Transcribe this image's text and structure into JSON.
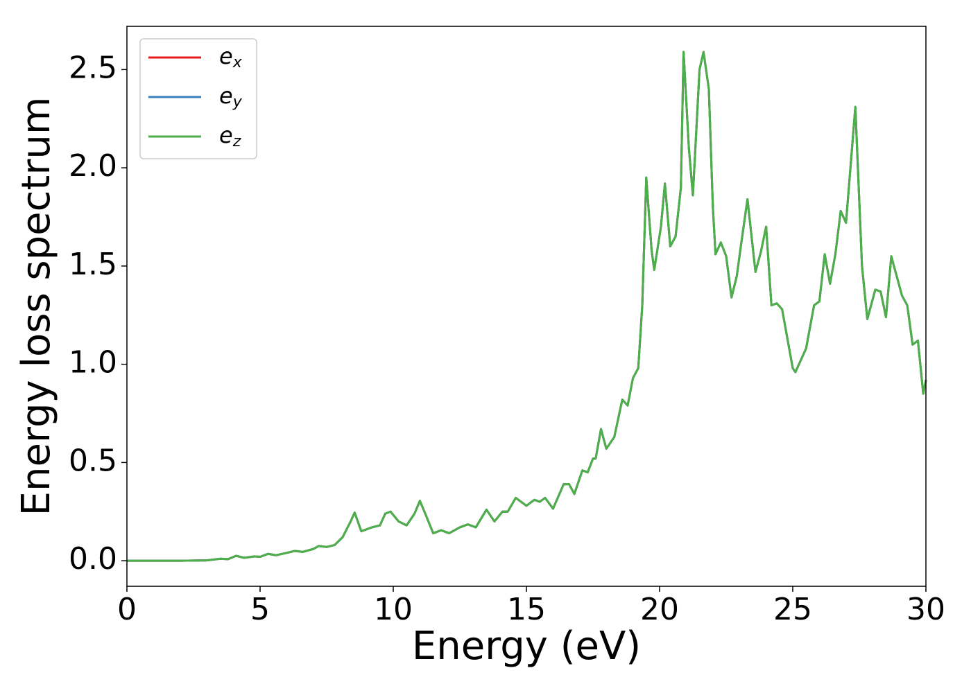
{
  "chart_data": {
    "type": "line",
    "xlabel": "Energy (eV)",
    "ylabel": "Energy loss spectrum",
    "x": [
      0,
      1,
      2,
      3,
      3.5,
      3.8,
      4.1,
      4.4,
      4.8,
      5,
      5.3,
      5.6,
      6,
      6.3,
      6.6,
      7,
      7.2,
      7.5,
      7.8,
      8.1,
      8.4,
      8.55,
      8.8,
      9.2,
      9.5,
      9.7,
      9.9,
      10.2,
      10.5,
      10.8,
      11.0,
      11.2,
      11.5,
      11.8,
      12.1,
      12.5,
      12.8,
      13.1,
      13.5,
      13.8,
      14.1,
      14.3,
      14.6,
      15,
      15.3,
      15.5,
      15.7,
      16,
      16.4,
      16.6,
      16.8,
      17.1,
      17.3,
      17.5,
      17.6,
      17.8,
      18,
      18.3,
      18.6,
      18.8,
      19,
      19.2,
      19.35,
      19.5,
      19.7,
      19.8,
      20.05,
      20.2,
      20.4,
      20.6,
      20.8,
      20.9,
      21.1,
      21.25,
      21.5,
      21.65,
      21.85,
      22.0,
      22.1,
      22.3,
      22.5,
      22.7,
      22.9,
      23.05,
      23.3,
      23.6,
      23.8,
      24.0,
      24.2,
      24.4,
      24.6,
      25.0,
      25.1,
      25.5,
      25.8,
      26.0,
      26.2,
      26.4,
      26.6,
      26.8,
      27.0,
      27.35,
      27.6,
      27.8,
      28.1,
      28.3,
      28.5,
      28.7,
      28.9,
      29.1,
      29.3,
      29.5,
      29.7,
      29.9,
      30
    ],
    "series": [
      {
        "name": "ex",
        "color": "#e41a1c",
        "values": [
          0,
          0,
          0,
          0.002,
          0.01,
          0.008,
          0.025,
          0.015,
          0.022,
          0.02,
          0.035,
          0.028,
          0.04,
          0.05,
          0.045,
          0.06,
          0.075,
          0.07,
          0.08,
          0.12,
          0.2,
          0.245,
          0.15,
          0.17,
          0.18,
          0.24,
          0.25,
          0.2,
          0.18,
          0.24,
          0.305,
          0.24,
          0.14,
          0.155,
          0.14,
          0.17,
          0.185,
          0.17,
          0.26,
          0.2,
          0.25,
          0.25,
          0.32,
          0.28,
          0.31,
          0.3,
          0.32,
          0.265,
          0.39,
          0.39,
          0.34,
          0.46,
          0.45,
          0.52,
          0.52,
          0.67,
          0.57,
          0.63,
          0.82,
          0.79,
          0.93,
          0.98,
          1.3,
          1.95,
          1.58,
          1.48,
          1.7,
          1.92,
          1.6,
          1.65,
          1.9,
          2.59,
          2.1,
          1.86,
          2.5,
          2.59,
          2.4,
          1.8,
          1.56,
          1.62,
          1.55,
          1.34,
          1.45,
          1.6,
          1.84,
          1.47,
          1.57,
          1.7,
          1.3,
          1.31,
          1.28,
          0.98,
          0.96,
          1.08,
          1.3,
          1.32,
          1.56,
          1.41,
          1.56,
          1.78,
          1.72,
          2.31,
          1.5,
          1.23,
          1.38,
          1.37,
          1.24,
          1.55,
          1.45,
          1.35,
          1.3,
          1.1,
          1.12,
          0.85,
          0.92
        ]
      },
      {
        "name": "ey",
        "color": "#377eb8",
        "values": [
          0,
          0,
          0,
          0.002,
          0.01,
          0.008,
          0.025,
          0.015,
          0.022,
          0.02,
          0.035,
          0.028,
          0.04,
          0.05,
          0.045,
          0.06,
          0.075,
          0.07,
          0.08,
          0.12,
          0.2,
          0.245,
          0.15,
          0.17,
          0.18,
          0.24,
          0.25,
          0.2,
          0.18,
          0.24,
          0.305,
          0.24,
          0.14,
          0.155,
          0.14,
          0.17,
          0.185,
          0.17,
          0.26,
          0.2,
          0.25,
          0.25,
          0.32,
          0.28,
          0.31,
          0.3,
          0.32,
          0.265,
          0.39,
          0.39,
          0.34,
          0.46,
          0.45,
          0.52,
          0.52,
          0.67,
          0.57,
          0.63,
          0.82,
          0.79,
          0.93,
          0.98,
          1.3,
          1.95,
          1.58,
          1.48,
          1.7,
          1.92,
          1.6,
          1.65,
          1.9,
          2.59,
          2.1,
          1.86,
          2.5,
          2.59,
          2.4,
          1.8,
          1.56,
          1.62,
          1.55,
          1.34,
          1.45,
          1.6,
          1.84,
          1.47,
          1.57,
          1.7,
          1.3,
          1.31,
          1.28,
          0.98,
          0.96,
          1.08,
          1.3,
          1.32,
          1.56,
          1.41,
          1.56,
          1.78,
          1.72,
          2.31,
          1.5,
          1.23,
          1.38,
          1.37,
          1.24,
          1.55,
          1.45,
          1.35,
          1.3,
          1.1,
          1.12,
          0.85,
          0.92
        ]
      },
      {
        "name": "ez",
        "color": "#4daf4a",
        "values": [
          0,
          0,
          0,
          0.002,
          0.01,
          0.008,
          0.025,
          0.015,
          0.022,
          0.02,
          0.035,
          0.028,
          0.04,
          0.05,
          0.045,
          0.06,
          0.075,
          0.07,
          0.08,
          0.12,
          0.2,
          0.245,
          0.15,
          0.17,
          0.18,
          0.24,
          0.25,
          0.2,
          0.18,
          0.24,
          0.305,
          0.24,
          0.14,
          0.155,
          0.14,
          0.17,
          0.185,
          0.17,
          0.26,
          0.2,
          0.25,
          0.25,
          0.32,
          0.28,
          0.31,
          0.3,
          0.32,
          0.265,
          0.39,
          0.39,
          0.34,
          0.46,
          0.45,
          0.52,
          0.52,
          0.67,
          0.57,
          0.63,
          0.82,
          0.79,
          0.93,
          0.98,
          1.3,
          1.95,
          1.58,
          1.48,
          1.7,
          1.92,
          1.6,
          1.65,
          1.9,
          2.59,
          2.1,
          1.86,
          2.5,
          2.59,
          2.4,
          1.8,
          1.56,
          1.62,
          1.55,
          1.34,
          1.45,
          1.6,
          1.84,
          1.47,
          1.57,
          1.7,
          1.3,
          1.31,
          1.28,
          0.98,
          0.96,
          1.08,
          1.3,
          1.32,
          1.56,
          1.41,
          1.56,
          1.78,
          1.72,
          2.31,
          1.5,
          1.23,
          1.38,
          1.37,
          1.24,
          1.55,
          1.45,
          1.35,
          1.3,
          1.1,
          1.12,
          0.85,
          0.92
        ]
      }
    ],
    "xlim": [
      0,
      30
    ],
    "xticks": [
      0,
      5,
      10,
      15,
      20,
      25,
      30
    ],
    "ylim": [
      -0.13,
      2.72
    ],
    "yticks": [
      {
        "value": 0,
        "label": "0.0"
      },
      0.5,
      {
        "value": 1,
        "label": "1.0"
      },
      1.5,
      {
        "value": 2,
        "label": "2.0"
      },
      2.5
    ],
    "grid": false,
    "legend": "upper left"
  }
}
